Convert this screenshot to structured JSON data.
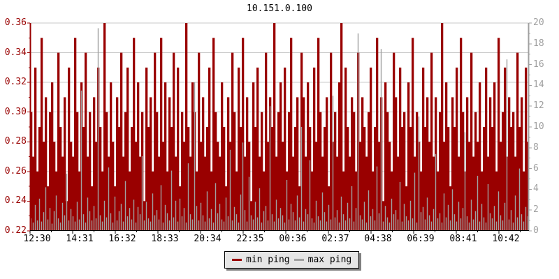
{
  "window": {
    "title": "10.151.0.100"
  },
  "chart_data": {
    "type": "bar",
    "title": "10.151.0.100",
    "grid": {
      "horizontal": true,
      "vertical": false,
      "color": "#c8c8c8"
    },
    "left_axis": {
      "min": 0.22,
      "max": 0.36,
      "step": 0.02,
      "color": "#990000",
      "tick_labels": [
        "0.36",
        "0.34",
        "0.32",
        "0.30",
        "0.28",
        "0.26",
        "0.24",
        "0.22"
      ]
    },
    "right_axis": {
      "min": 0,
      "max": 20,
      "step": 2,
      "color": "#a0a0a0",
      "tick_labels": [
        "20",
        "18",
        "16",
        "14",
        "12",
        "10",
        "8",
        "6",
        "4",
        "2",
        "0"
      ]
    },
    "x_axis": {
      "color": "#000000",
      "tick_labels": [
        "12:30",
        "14:31",
        "16:32",
        "18:33",
        "20:34",
        "22:35",
        "00:36",
        "02:37",
        "04:38",
        "06:39",
        "08:41",
        "10:42"
      ]
    },
    "legend": {
      "position": "bottom-center",
      "items": [
        {
          "label": "min ping",
          "color": "#990000"
        },
        {
          "label": "max ping",
          "color": "#a0a0a0"
        }
      ]
    },
    "series": [
      {
        "name": "min ping",
        "axis": "left",
        "color": "#990000",
        "values": [
          0.3,
          0.27,
          0.33,
          0.26,
          0.29,
          0.35,
          0.28,
          0.31,
          0.25,
          0.3,
          0.32,
          0.28,
          0.26,
          0.34,
          0.29,
          0.27,
          0.31,
          0.24,
          0.33,
          0.28,
          0.27,
          0.35,
          0.3,
          0.26,
          0.32,
          0.29,
          0.34,
          0.27,
          0.3,
          0.25,
          0.31,
          0.28,
          0.33,
          0.29,
          0.26,
          0.36,
          0.3,
          0.27,
          0.32,
          0.28,
          0.25,
          0.31,
          0.29,
          0.34,
          0.27,
          0.3,
          0.33,
          0.26,
          0.29,
          0.35,
          0.28,
          0.32,
          0.27,
          0.3,
          0.24,
          0.33,
          0.29,
          0.31,
          0.26,
          0.34,
          0.3,
          0.27,
          0.35,
          0.28,
          0.32,
          0.26,
          0.31,
          0.29,
          0.34,
          0.27,
          0.33,
          0.25,
          0.3,
          0.28,
          0.36,
          0.29,
          0.27,
          0.32,
          0.3,
          0.26,
          0.34,
          0.28,
          0.31,
          0.27,
          0.29,
          0.33,
          0.26,
          0.35,
          0.3,
          0.28,
          0.27,
          0.32,
          0.29,
          0.25,
          0.31,
          0.28,
          0.34,
          0.3,
          0.26,
          0.33,
          0.29,
          0.35,
          0.27,
          0.31,
          0.28,
          0.24,
          0.32,
          0.29,
          0.33,
          0.27,
          0.3,
          0.26,
          0.34,
          0.28,
          0.31,
          0.29,
          0.36,
          0.27,
          0.3,
          0.32,
          0.28,
          0.33,
          0.26,
          0.3,
          0.35,
          0.27,
          0.29,
          0.31,
          0.25,
          0.34,
          0.31,
          0.27,
          0.32,
          0.29,
          0.26,
          0.33,
          0.28,
          0.35,
          0.3,
          0.27,
          0.29,
          0.31,
          0.25,
          0.34,
          0.28,
          0.3,
          0.27,
          0.32,
          0.36,
          0.26,
          0.33,
          0.29,
          0.27,
          0.31,
          0.3,
          0.26,
          0.34,
          0.28,
          0.31,
          0.29,
          0.27,
          0.3,
          0.33,
          0.26,
          0.29,
          0.35,
          0.28,
          0.31,
          0.24,
          0.32,
          0.3,
          0.28,
          0.26,
          0.34,
          0.31,
          0.27,
          0.33,
          0.29,
          0.3,
          0.25,
          0.32,
          0.29,
          0.35,
          0.27,
          0.3,
          0.28,
          0.26,
          0.33,
          0.29,
          0.31,
          0.28,
          0.34,
          0.27,
          0.31,
          0.26,
          0.3,
          0.36,
          0.28,
          0.32,
          0.29,
          0.25,
          0.31,
          0.29,
          0.33,
          0.27,
          0.35,
          0.3,
          0.26,
          0.31,
          0.28,
          0.34,
          0.27,
          0.3,
          0.28,
          0.32,
          0.26,
          0.29,
          0.33,
          0.27,
          0.31,
          0.29,
          0.32,
          0.26,
          0.35,
          0.28,
          0.3,
          0.33,
          0.27,
          0.31,
          0.29,
          0.3,
          0.27,
          0.34,
          0.29,
          0.31,
          0.26,
          0.33,
          0.28
        ]
      },
      {
        "name": "max ping",
        "axis": "right",
        "color": "#a0a0a0",
        "values": [
          1.2,
          0.8,
          2.5,
          1.0,
          3.1,
          0.9,
          1.8,
          4.2,
          1.1,
          2.2,
          0.7,
          1.9,
          3.4,
          1.2,
          0.8,
          2.7,
          1.5,
          5.5,
          1.0,
          2.1,
          1.4,
          0.9,
          2.8,
          1.1,
          13.5,
          1.6,
          0.8,
          3.2,
          1.9,
          1.0,
          2.4,
          1.2,
          19.5,
          1.5,
          0.9,
          2.9,
          1.3,
          6.1,
          1.7,
          0.8,
          3.3,
          1.0,
          1.9,
          2.6,
          0.9,
          4.8,
          1.4,
          2.2,
          1.1,
          3.0,
          0.8,
          2.3,
          1.6,
          7.2,
          1.0,
          2.8,
          1.2,
          0.9,
          3.6,
          1.5,
          2.0,
          1.1,
          4.4,
          0.8,
          2.5,
          1.7,
          1.0,
          5.8,
          1.3,
          2.9,
          0.9,
          3.1,
          1.4,
          2.2,
          0.8,
          6.5,
          1.6,
          1.1,
          14.3,
          2.4,
          1.0,
          2.7,
          1.5,
          0.9,
          3.8,
          1.2,
          2.1,
          0.8,
          4.6,
          1.7,
          2.6,
          1.1,
          0.9,
          3.2,
          1.4,
          7.8,
          1.0,
          2.3,
          1.6,
          0.8,
          3.5,
          8.5,
          2.0,
          0.9,
          5.2,
          1.5,
          1.1,
          2.8,
          1.3,
          4.1,
          0.8,
          1.9,
          2.4,
          1.0,
          12.0,
          1.6,
          0.9,
          3.0,
          1.2,
          2.2,
          1.5,
          0.8,
          4.9,
          1.1,
          2.6,
          1.8,
          1.0,
          3.4,
          1.3,
          10.0,
          0.9,
          2.1,
          1.6,
          6.8,
          1.2,
          0.8,
          2.9,
          1.4,
          1.0,
          3.7,
          1.8,
          0.9,
          2.5,
          1.1,
          13.0,
          1.3,
          2.0,
          0.8,
          3.3,
          1.6,
          1.0,
          2.7,
          1.2,
          4.3,
          0.9,
          2.2,
          19.0,
          1.5,
          1.1,
          2.8,
          0.8,
          3.9,
          1.4,
          2.1,
          1.0,
          6.2,
          1.7,
          17.5,
          0.9,
          2.4,
          1.3,
          0.8,
          3.1,
          1.6,
          2.0,
          1.1,
          4.7,
          0.9,
          2.6,
          1.4,
          1.0,
          2.9,
          1.2,
          5.6,
          0.8,
          11.0,
          1.8,
          2.3,
          1.1,
          3.2,
          1.5,
          0.9,
          2.1,
          7.4,
          1.2,
          1.7,
          0.8,
          3.6,
          1.3,
          2.5,
          1.0,
          4.0,
          1.6,
          0.9,
          2.8,
          1.2,
          2.2,
          9.5,
          1.4,
          0.8,
          3.0,
          1.1,
          1.9,
          5.3,
          0.9,
          2.6,
          1.3,
          0.8,
          4.5,
          1.7,
          1.2,
          2.4,
          0.9,
          3.8,
          1.5,
          1.0,
          2.7,
          16.5,
          1.1,
          2.0,
          0.8,
          3.4,
          1.3,
          6.0,
          1.6,
          0.9,
          2.3,
          1.4
        ]
      }
    ]
  }
}
